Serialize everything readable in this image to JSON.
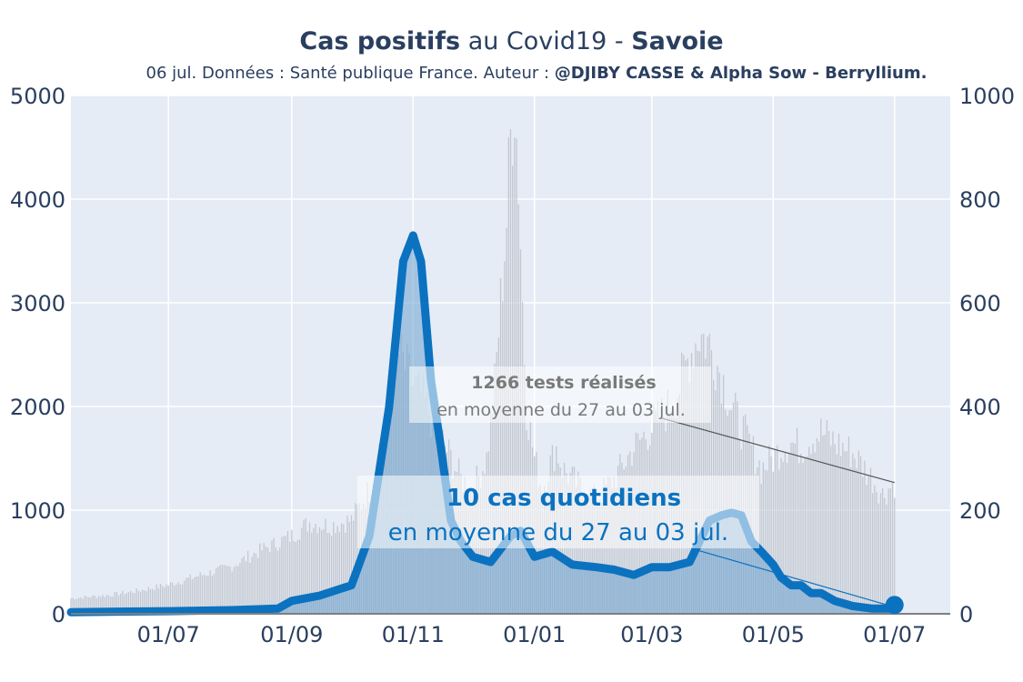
{
  "title": {
    "bold_part": "Cas positifs",
    "middle_part": " au Covid19 - ",
    "region": "Savoie"
  },
  "subtitle": {
    "text": "06 jul. Données : Santé publique France. Auteur : ",
    "author": "@DJIBY CASSE & Alpha Sow - Berryllium."
  },
  "annotations": {
    "tests_bold": "1266 tests réalisés",
    "tests_sub": "en moyenne du 27 au 03 jul.",
    "cases_bold": "10 cas quotidiens",
    "cases_sub": "en moyenne du 27 au 03 jul."
  },
  "colors": {
    "plot_bg": "#e5ecf6",
    "cases_line": "#0b72c0",
    "cases_fill": "#6ea2cf",
    "tests_bar": "#c3c7cf",
    "text": "#2a3f5f",
    "tests_annotation": "#7a7a7a"
  },
  "chart_data": {
    "type": "line",
    "x_axis": {
      "ticks": [
        "01/07",
        "01/09",
        "01/11",
        "01/01",
        "01/03",
        "01/05",
        "01/07"
      ],
      "range": [
        "2020-05-13",
        "2021-07-29"
      ]
    },
    "y_left": {
      "ticks": [
        0,
        1000,
        2000,
        3000,
        4000,
        5000
      ],
      "range": [
        0,
        5000
      ]
    },
    "y_right": {
      "ticks": [
        0,
        200,
        400,
        600,
        800,
        1000
      ],
      "range": [
        0,
        1000
      ]
    },
    "grid": true,
    "tests_series": {
      "name": "tests",
      "axis": "left",
      "x": [
        "2020-05-13",
        "2020-06-01",
        "2020-06-15",
        "2020-07-01",
        "2020-07-15",
        "2020-08-01",
        "2020-08-15",
        "2020-09-01",
        "2020-09-10",
        "2020-09-20",
        "2020-10-01",
        "2020-10-10",
        "2020-10-20",
        "2020-10-25",
        "2020-10-30",
        "2020-11-01",
        "2020-11-05",
        "2020-11-10",
        "2020-11-15",
        "2020-11-20",
        "2020-11-25",
        "2020-12-01",
        "2020-12-08",
        "2020-12-12",
        "2020-12-15",
        "2020-12-18",
        "2020-12-20",
        "2020-12-22",
        "2020-12-24",
        "2020-12-26",
        "2020-12-28",
        "2021-01-01",
        "2021-01-05",
        "2021-01-08",
        "2021-01-12",
        "2021-01-15",
        "2021-01-20",
        "2021-01-25",
        "2021-02-01",
        "2021-02-10",
        "2021-02-20",
        "2021-03-01",
        "2021-03-10",
        "2021-03-15",
        "2021-03-20",
        "2021-03-25",
        "2021-03-30",
        "2021-04-05",
        "2021-04-10",
        "2021-04-15",
        "2021-04-20",
        "2021-04-25",
        "2021-05-01",
        "2021-05-05",
        "2021-05-10",
        "2021-05-15",
        "2021-05-20",
        "2021-05-25",
        "2021-06-01",
        "2021-06-10",
        "2021-06-20",
        "2021-06-25",
        "2021-07-01"
      ],
      "y": [
        150,
        180,
        220,
        280,
        360,
        450,
        600,
        750,
        880,
        850,
        900,
        1200,
        2000,
        2500,
        2300,
        2200,
        2100,
        1900,
        1700,
        1500,
        1300,
        1200,
        1500,
        2200,
        3000,
        3800,
        4600,
        5000,
        4200,
        3000,
        2000,
        1500,
        1200,
        1400,
        1600,
        1400,
        1300,
        1200,
        1100,
        1300,
        1600,
        1800,
        2000,
        2200,
        2500,
        2700,
        2600,
        2300,
        2000,
        1800,
        1600,
        1400,
        1500,
        1600,
        1650,
        1600,
        1700,
        1750,
        1650,
        1550,
        1300,
        1150,
        1266
      ]
    },
    "cases_series": {
      "name": "cas",
      "axis": "right",
      "x": [
        "2020-05-13",
        "2020-06-01",
        "2020-07-01",
        "2020-08-01",
        "2020-08-25",
        "2020-09-01",
        "2020-09-15",
        "2020-10-01",
        "2020-10-10",
        "2020-10-20",
        "2020-10-27",
        "2020-11-01",
        "2020-11-05",
        "2020-11-10",
        "2020-11-15",
        "2020-11-20",
        "2020-11-25",
        "2020-12-01",
        "2020-12-10",
        "2020-12-20",
        "2020-12-25",
        "2021-01-01",
        "2021-01-10",
        "2021-01-20",
        "2021-02-01",
        "2021-02-10",
        "2021-02-20",
        "2021-03-01",
        "2021-03-10",
        "2021-03-20",
        "2021-03-30",
        "2021-04-05",
        "2021-04-10",
        "2021-04-15",
        "2021-04-20",
        "2021-04-25",
        "2021-05-01",
        "2021-05-05",
        "2021-05-10",
        "2021-05-15",
        "2021-05-20",
        "2021-05-25",
        "2021-06-01",
        "2021-06-10",
        "2021-06-20",
        "2021-07-01"
      ],
      "y": [
        3,
        4,
        5,
        7,
        10,
        25,
        35,
        55,
        150,
        400,
        680,
        730,
        680,
        450,
        320,
        180,
        140,
        110,
        100,
        150,
        160,
        110,
        120,
        95,
        90,
        85,
        75,
        90,
        90,
        100,
        180,
        190,
        195,
        190,
        140,
        120,
        95,
        70,
        55,
        55,
        40,
        40,
        25,
        15,
        10,
        10
      ]
    }
  }
}
